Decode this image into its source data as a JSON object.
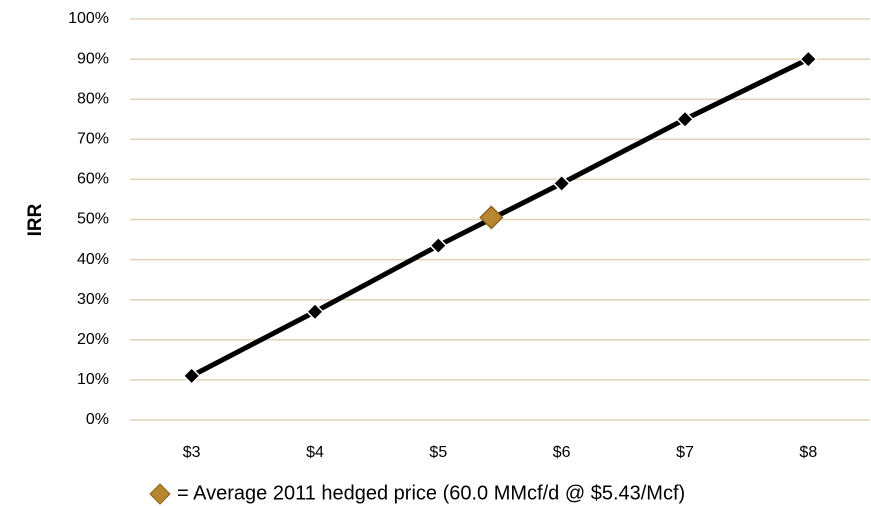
{
  "chart_data": {
    "type": "line",
    "y_label": "IRR",
    "series": [
      {
        "name": "IRR",
        "color": "#000000",
        "x": [
          3,
          4,
          5,
          6,
          7,
          8
        ],
        "values": [
          11,
          27,
          43.5,
          59,
          75,
          90
        ]
      },
      {
        "name": "= Average 2011 hedged price (60.0 MMcf/d @ $5.43/Mcf)",
        "color": "#b8862e",
        "x": [
          5.43
        ],
        "values": [
          50.5
        ]
      }
    ],
    "xlim": [
      2.5,
      8.5
    ],
    "xticks": [
      {
        "value": 3,
        "label": "$3"
      },
      {
        "value": 4,
        "label": "$4"
      },
      {
        "value": 5,
        "label": "$5"
      },
      {
        "value": 6,
        "label": "$6"
      },
      {
        "value": 7,
        "label": "$7"
      },
      {
        "value": 8,
        "label": "$8"
      }
    ],
    "ylim": [
      0,
      100
    ],
    "yticks": [
      {
        "value": 0,
        "label": "0%"
      },
      {
        "value": 10,
        "label": "10%"
      },
      {
        "value": 20,
        "label": "20%"
      },
      {
        "value": 30,
        "label": "30%"
      },
      {
        "value": 40,
        "label": "40%"
      },
      {
        "value": 50,
        "label": "50%"
      },
      {
        "value": 60,
        "label": "60%"
      },
      {
        "value": 70,
        "label": "70%"
      },
      {
        "value": 80,
        "label": "80%"
      },
      {
        "value": 90,
        "label": "90%"
      },
      {
        "value": 100,
        "label": "100%"
      }
    ],
    "grid": true
  }
}
